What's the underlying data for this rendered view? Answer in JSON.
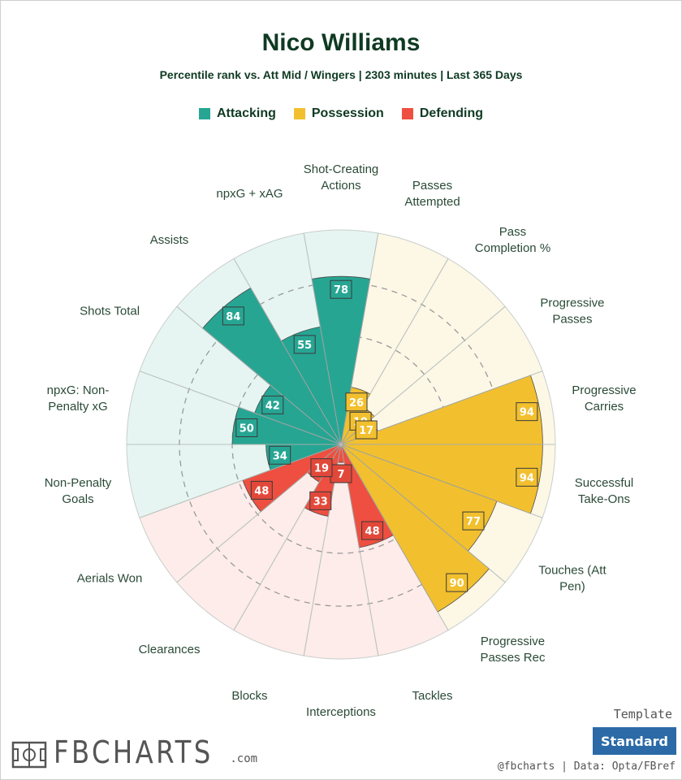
{
  "header": {
    "title": "Nico Williams",
    "subtitle": "Percentile rank vs. Att Mid / Wingers | 2303 minutes | Last 365 Days"
  },
  "legend": [
    {
      "label": "Attacking",
      "color": "#27a593"
    },
    {
      "label": "Possession",
      "color": "#f2c02e"
    },
    {
      "label": "Defending",
      "color": "#ee4f40"
    }
  ],
  "chart_data": {
    "type": "radar",
    "range": [
      0,
      100
    ],
    "categories": [
      {
        "label": [
          "Shot-Creating",
          "Actions"
        ],
        "value": 78,
        "group": "Attacking"
      },
      {
        "label": [
          "Passes",
          "Attempted"
        ],
        "value": 26,
        "group": "Possession"
      },
      {
        "label": [
          "Pass",
          "Completion %"
        ],
        "value": 19,
        "group": "Possession"
      },
      {
        "label": [
          "Progressive",
          "Passes"
        ],
        "value": 17,
        "group": "Possession"
      },
      {
        "label": [
          "Progressive",
          "Carries"
        ],
        "value": 94,
        "group": "Possession"
      },
      {
        "label": [
          "Successful",
          "Take-Ons"
        ],
        "value": 94,
        "group": "Possession"
      },
      {
        "label": [
          "Touches (Att",
          "Pen)"
        ],
        "value": 77,
        "group": "Possession"
      },
      {
        "label": [
          "Progressive",
          "Passes Rec"
        ],
        "value": 90,
        "group": "Possession"
      },
      {
        "label": [
          "Tackles"
        ],
        "value": 48,
        "group": "Defending"
      },
      {
        "label": [
          "Interceptions"
        ],
        "value": 7,
        "group": "Defending"
      },
      {
        "label": [
          "Blocks"
        ],
        "value": 33,
        "group": "Defending"
      },
      {
        "label": [
          "Clearances"
        ],
        "value": 19,
        "group": "Defending"
      },
      {
        "label": [
          "Aerials Won"
        ],
        "value": 48,
        "group": "Defending"
      },
      {
        "label": [
          "Non-Penalty",
          "Goals"
        ],
        "value": 34,
        "group": "Attacking"
      },
      {
        "label": [
          "npxG: Non-",
          "Penalty xG"
        ],
        "value": 50,
        "group": "Attacking"
      },
      {
        "label": [
          "Shots Total"
        ],
        "value": 42,
        "group": "Attacking"
      },
      {
        "label": [
          "Assists"
        ],
        "value": 84,
        "group": "Attacking"
      },
      {
        "label": [
          "npxG + xAG"
        ],
        "value": 55,
        "group": "Attacking"
      }
    ],
    "group_colors": {
      "Attacking": {
        "fill": "#27a593",
        "bg": "#e6f5f2",
        "label": "#27a593"
      },
      "Possession": {
        "fill": "#f2c02e",
        "bg": "#fdf7e6",
        "label": "#f2c02e"
      },
      "Defending": {
        "fill": "#ee4f40",
        "bg": "#fdecea",
        "label": "#e2483a"
      }
    },
    "gridlines": [
      50,
      75
    ]
  },
  "footer": {
    "logo_text": "FBCHARTS",
    "logo_suffix": ".com",
    "template_label": "Template",
    "template_button": "Standard",
    "credit": "@fbcharts | Data: Opta/FBref"
  }
}
